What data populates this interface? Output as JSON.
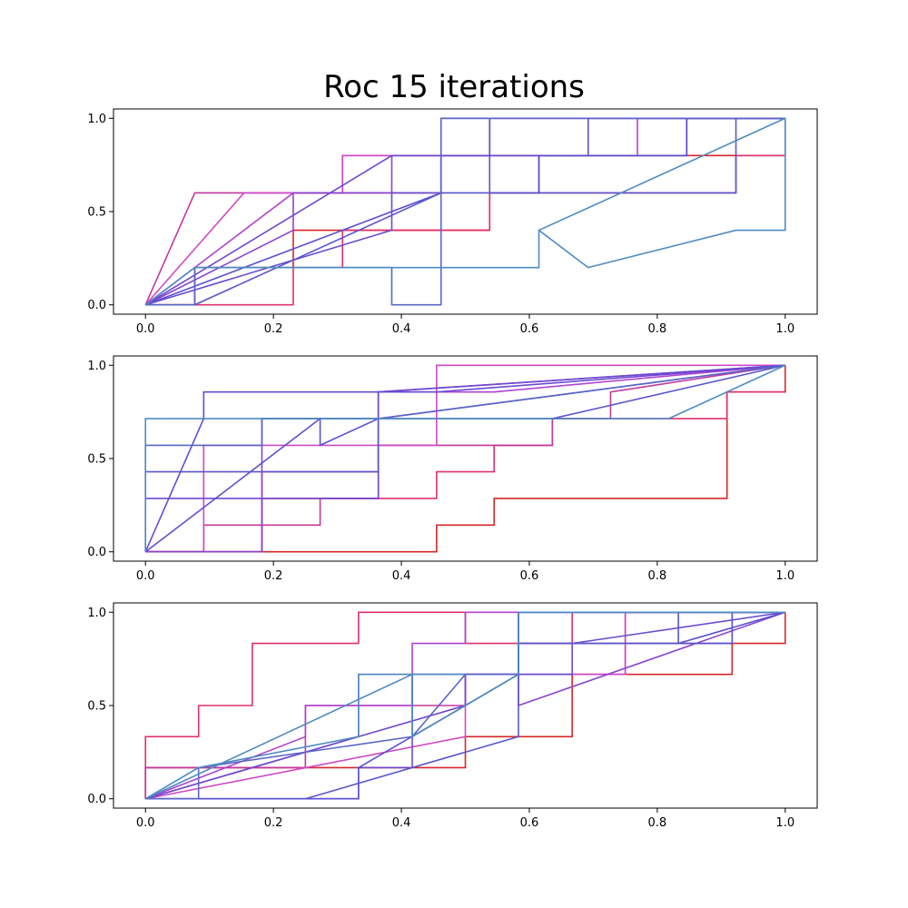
{
  "title": "Roc 15 iterations",
  "chart_data": [
    {
      "type": "line",
      "title": "",
      "xlabel": "",
      "ylabel": "",
      "xlim": [
        -0.05,
        1.05
      ],
      "ylim": [
        -0.05,
        1.05
      ],
      "xticks": [
        "0.0",
        "0.2",
        "0.4",
        "0.6",
        "0.8",
        "1.0"
      ],
      "yticks": [
        "0.0",
        "0.5",
        "1.0"
      ],
      "grid": false,
      "series": [
        {
          "color": "#d62728",
          "x": [
            0,
            0.077,
            0.077,
            0.231,
            0.231,
            0.385,
            0.385,
            0.538,
            0.538,
            0.615,
            0.615,
            0.692,
            0.692,
            0.846,
            0.846,
            1.0,
            1.0
          ],
          "y": [
            0,
            0,
            0.2,
            0.2,
            0.4,
            0.4,
            0.4,
            0.4,
            0.6,
            0.6,
            0.8,
            0.8,
            0.8,
            0.8,
            0.8,
            0.8,
            1.0
          ]
        },
        {
          "color": "#e0306b",
          "x": [
            0,
            0.077,
            0.077,
            0.231,
            0.231,
            0.308,
            0.308,
            0.538,
            0.538,
            0.615,
            0.615,
            0.692,
            0.692,
            0.846,
            0.846,
            0.923,
            0.923,
            1.0
          ],
          "y": [
            0,
            0,
            0,
            0,
            0.2,
            0.2,
            0.4,
            0.4,
            0.6,
            0.6,
            0.6,
            0.6,
            0.6,
            0.6,
            0.6,
            0.6,
            0.8,
            0.8
          ]
        },
        {
          "color": "#c2399e",
          "x": [
            0,
            0.077,
            0.077,
            0.308,
            0.308,
            0.692,
            0.692,
            0.846,
            0.846,
            1.0,
            1.0
          ],
          "y": [
            0,
            0.6,
            0.6,
            0.6,
            0.8,
            0.8,
            0.8,
            0.8,
            1.0,
            1.0,
            1.0
          ]
        },
        {
          "color": "#d048c8",
          "x": [
            0,
            0.154,
            0.154,
            0.308,
            0.308,
            0.538,
            0.538,
            0.769,
            0.769,
            1.0
          ],
          "y": [
            0,
            0.6,
            0.6,
            0.6,
            0.8,
            0.8,
            1.0,
            1.0,
            1.0,
            1.0
          ]
        },
        {
          "color": "#b044d0",
          "x": [
            0,
            0.231,
            0.231,
            0.462,
            0.462,
            0.769,
            0.769,
            1.0
          ],
          "y": [
            0,
            0.6,
            0.6,
            0.6,
            0.8,
            0.8,
            1.0,
            1.0
          ]
        },
        {
          "color": "#8a44cc",
          "x": [
            0,
            0.231,
            0.231,
            0.385,
            0.385,
            0.615,
            0.615,
            0.846,
            0.846,
            1.0
          ],
          "y": [
            0,
            0.4,
            0.6,
            0.6,
            0.8,
            0.8,
            0.8,
            0.8,
            1.0,
            1.0
          ]
        },
        {
          "color": "#7048d0",
          "x": [
            0,
            0.385,
            0.385,
            0.538,
            0.538,
            0.692,
            0.692,
            1.0
          ],
          "y": [
            0,
            0.8,
            0.8,
            0.8,
            1.0,
            1.0,
            1.0,
            1.0
          ]
        },
        {
          "color": "#6a4bd0",
          "x": [
            0,
            0.385,
            0.385,
            0.462,
            0.462,
            0.692,
            0.692,
            1.0
          ],
          "y": [
            0,
            0.4,
            0.6,
            0.6,
            0.8,
            0.8,
            1.0,
            1.0
          ]
        },
        {
          "color": "#5a52d0",
          "x": [
            0,
            0.462,
            0.462,
            0.615,
            0.615,
            0.846,
            0.846,
            1.0
          ],
          "y": [
            0,
            0.6,
            0.6,
            0.6,
            0.8,
            0.8,
            1.0,
            1.0
          ]
        },
        {
          "color": "#5a56cc",
          "x": [
            0.077,
            0.462,
            0.462,
            0.538,
            0.538,
            0.615,
            0.615,
            0.923,
            0.923,
            1.0
          ],
          "y": [
            0,
            0.6,
            1.0,
            1.0,
            0.6,
            0.6,
            0.6,
            0.6,
            1.0,
            1.0
          ]
        },
        {
          "color": "#5a66c8",
          "x": [
            0,
            0.077,
            0.077,
            0.385,
            0.385,
            0.462,
            0.462,
            1.0
          ],
          "y": [
            0,
            0,
            0.2,
            0.2,
            0,
            0,
            1.0,
            1.0
          ]
        },
        {
          "color": "#4e8bc0",
          "x": [
            0,
            0.077,
            0.077,
            0.615,
            0.615,
            0.692,
            0.923,
            1.0,
            1.0
          ],
          "y": [
            0,
            0.2,
            0.2,
            0.2,
            0.4,
            0.2,
            0.4,
            0.4,
            1.0
          ]
        },
        {
          "color": "#4e8bc0",
          "x": [
            0.615,
            1.0
          ],
          "y": [
            0.4,
            1.0
          ]
        }
      ]
    },
    {
      "type": "line",
      "title": "",
      "xlabel": "",
      "ylabel": "",
      "xlim": [
        -0.05,
        1.05
      ],
      "ylim": [
        -0.05,
        1.05
      ],
      "xticks": [
        "0.0",
        "0.2",
        "0.4",
        "0.6",
        "0.8",
        "1.0"
      ],
      "yticks": [
        "0.0",
        "0.5",
        "1.0"
      ],
      "grid": false,
      "series": [
        {
          "color": "#d62728",
          "x": [
            0,
            0.455,
            0.455,
            0.545,
            0.545,
            0.909,
            0.909,
            1.0,
            1.0
          ],
          "y": [
            0,
            0,
            0.143,
            0.143,
            0.286,
            0.286,
            0.857,
            0.857,
            1.0
          ]
        },
        {
          "color": "#e0306b",
          "x": [
            0,
            0.182,
            0.182,
            0.455,
            0.455,
            0.545,
            0.545,
            0.636,
            0.636,
            0.909,
            0.909,
            1.0
          ],
          "y": [
            0,
            0,
            0.286,
            0.286,
            0.429,
            0.429,
            0.571,
            0.571,
            0.714,
            0.714,
            0.857,
            0.857
          ]
        },
        {
          "color": "#c2399e",
          "x": [
            0,
            0.091,
            0.091,
            0.273,
            0.273,
            0.364,
            0.364,
            0.636,
            0.636,
            0.727,
            0.727,
            1.0
          ],
          "y": [
            0,
            0,
            0.143,
            0.143,
            0.286,
            0.286,
            0.571,
            0.571,
            0.714,
            0.714,
            0.857,
            1.0
          ]
        },
        {
          "color": "#d048c8",
          "x": [
            0,
            0.091,
            0.091,
            0.273,
            0.273,
            0.455,
            0.455,
            0.909,
            0.909,
            1.0
          ],
          "y": [
            0,
            0,
            0.571,
            0.571,
            0.571,
            0.571,
            1.0,
            1.0,
            1.0,
            1.0
          ]
        },
        {
          "color": "#b044d0",
          "x": [
            0,
            0.182,
            0.182,
            0.364,
            0.364,
            0.545,
            1.0
          ],
          "y": [
            0,
            0,
            0.429,
            0.429,
            0.857,
            0.857,
            1.0
          ]
        },
        {
          "color": "#8a44cc",
          "x": [
            0,
            0.182,
            0.182,
            0.364,
            0.364,
            1.0
          ],
          "y": [
            0,
            0,
            0.714,
            0.714,
            0.857,
            1.0
          ]
        },
        {
          "color": "#7048d0",
          "x": [
            0,
            0.364,
            0.364,
            1.0
          ],
          "y": [
            0.286,
            0.286,
            0.857,
            1.0
          ]
        },
        {
          "color": "#6a4bd0",
          "x": [
            0,
            0.091,
            0.091,
            0.455,
            1.0
          ],
          "y": [
            0,
            0.714,
            0.857,
            0.857,
            1.0
          ]
        },
        {
          "color": "#5a52d0",
          "x": [
            0,
            0.273,
            0.273,
            0.364,
            1.0
          ],
          "y": [
            0,
            0.714,
            0.571,
            0.714,
            1.0
          ]
        },
        {
          "color": "#5a56cc",
          "x": [
            0,
            0.364,
            0.364,
            0.636,
            1.0
          ],
          "y": [
            0.429,
            0.429,
            0.714,
            0.714,
            1.0
          ]
        },
        {
          "color": "#5a66c8",
          "x": [
            0,
            0.0,
            0.182,
            0.182,
            0.364,
            1.0
          ],
          "y": [
            0,
            0.571,
            0.571,
            0.714,
            0.714,
            1.0
          ]
        },
        {
          "color": "#4e8bc0",
          "x": [
            0,
            0.0,
            0.818,
            1.0
          ],
          "y": [
            0,
            0.714,
            0.714,
            1.0
          ]
        }
      ]
    },
    {
      "type": "line",
      "title": "",
      "xlabel": "",
      "ylabel": "",
      "xlim": [
        -0.05,
        1.05
      ],
      "ylim": [
        -0.05,
        1.05
      ],
      "xticks": [
        "0.0",
        "0.2",
        "0.4",
        "0.6",
        "0.8",
        "1.0"
      ],
      "yticks": [
        "0.0",
        "0.5",
        "1.0"
      ],
      "grid": false,
      "series": [
        {
          "color": "#d62728",
          "x": [
            0,
            0.0,
            0.083,
            0.083,
            0.167,
            0.167,
            0.333,
            0.333,
            0.5,
            0.5,
            0.667,
            0.667,
            0.917,
            0.917,
            1.0,
            1.0
          ],
          "y": [
            0,
            0.167,
            0.167,
            0.167,
            0.167,
            0.167,
            0.167,
            0.167,
            0.167,
            0.333,
            0.333,
            0.667,
            0.667,
            0.833,
            0.833,
            1.0
          ]
        },
        {
          "color": "#e0306b",
          "x": [
            0,
            0.0,
            0.083,
            0.083,
            0.167,
            0.167,
            0.333,
            0.333,
            0.5,
            0.5,
            0.667,
            0.667,
            1.0
          ],
          "y": [
            0,
            0.333,
            0.333,
            0.5,
            0.5,
            0.833,
            0.833,
            1.0,
            1.0,
            0.833,
            0.833,
            1.0,
            1.0
          ]
        },
        {
          "color": "#c2399e",
          "x": [
            0,
            0.0,
            0.25,
            0.25,
            0.333,
            0.333,
            0.5,
            0.5,
            0.75,
            0.75,
            1.0
          ],
          "y": [
            0,
            0.167,
            0.167,
            0.5,
            0.5,
            0.5,
            0.5,
            0.667,
            0.667,
            1.0,
            1.0
          ]
        },
        {
          "color": "#d048c8",
          "x": [
            0,
            0.5,
            0.5,
            0.75,
            0.75,
            1.0
          ],
          "y": [
            0,
            0.333,
            0.667,
            0.667,
            1.0,
            1.0
          ]
        },
        {
          "color": "#b044d0",
          "x": [
            0,
            0.25,
            0.25,
            0.417,
            0.417,
            0.5,
            0.5,
            1.0
          ],
          "y": [
            0,
            0.333,
            0.5,
            0.5,
            0.833,
            0.833,
            1.0,
            1.0
          ]
        },
        {
          "color": "#8a44cc",
          "x": [
            0,
            0.333,
            0.333,
            0.583,
            0.583,
            1.0
          ],
          "y": [
            0,
            0.333,
            0.667,
            0.667,
            0.5,
            1.0
          ]
        },
        {
          "color": "#7048d0",
          "x": [
            0,
            0.5,
            0.5,
            0.583,
            0.583,
            0.917,
            0.917,
            1.0
          ],
          "y": [
            0,
            0.5,
            0.667,
            0.667,
            0.833,
            0.833,
            1.0,
            1.0
          ]
        },
        {
          "color": "#6a4bd0",
          "x": [
            0,
            0.333,
            0.333,
            0.417,
            0.417,
            0.5,
            0.5,
            0.667,
            0.667,
            1.0
          ],
          "y": [
            0,
            0,
            0.167,
            0.167,
            0.667,
            0.667,
            0.667,
            0.667,
            0.833,
            1.0
          ]
        },
        {
          "color": "#5a52d0",
          "x": [
            0,
            0.333,
            0.333,
            0.5,
            0.583,
            0.583,
            0.833,
            0.833,
            1.0
          ],
          "y": [
            0,
            0,
            0.167,
            0.5,
            0.667,
            1.0,
            1.0,
            0.833,
            1.0
          ]
        },
        {
          "color": "#5a56cc",
          "x": [
            0.25,
            0.583,
            0.583,
            0.583,
            0.917,
            0.917,
            1.0
          ],
          "y": [
            0,
            0.333,
            0.333,
            0.833,
            0.833,
            1.0,
            1.0
          ]
        },
        {
          "color": "#5a66c8",
          "x": [
            0,
            0.083,
            0.083,
            0.417,
            0.417,
            0.5,
            0.5,
            0.583,
            0.583,
            1.0
          ],
          "y": [
            0,
            0,
            0.167,
            0.333,
            0.333,
            0.667,
            0.667,
            0.667,
            1.0,
            1.0
          ]
        },
        {
          "color": "#4e8bc0",
          "x": [
            0,
            0.083,
            0.333,
            0.333,
            0.417,
            0.417,
            0.583,
            0.583,
            1.0
          ],
          "y": [
            0,
            0.167,
            0.333,
            0.667,
            0.667,
            0.333,
            0.667,
            1.0,
            1.0
          ]
        },
        {
          "color": "#4e8bc0",
          "x": [
            0,
            0.417,
            0.5
          ],
          "y": [
            0,
            0.667,
            0.667
          ]
        }
      ]
    }
  ]
}
